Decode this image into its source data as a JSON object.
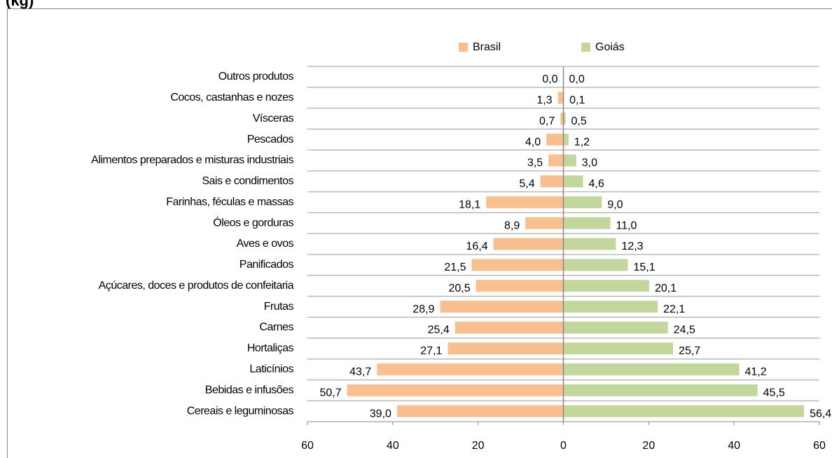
{
  "chart_data": {
    "type": "butterfly",
    "title": "(kg)",
    "categories": [
      "Outros produtos",
      "Cocos, castanhas e nozes",
      "Vísceras",
      "Pescados",
      "Alimentos preparados e misturas industriais",
      "Sais e condimentos",
      "Farinhas, féculas e massas",
      "Óleos e gorduras",
      "Aves e ovos",
      "Panificados",
      "Açúcares, doces e produtos de confeitaria",
      "Frutas",
      "Carnes",
      "Hortaliças",
      "Laticínios",
      "Bebidas e infusões",
      "Cereais e leguminosas"
    ],
    "series": [
      {
        "name": "Brasil",
        "color": "#f9bf8f",
        "side": "left",
        "values": [
          0.0,
          1.3,
          0.7,
          4.0,
          3.5,
          5.4,
          18.1,
          8.9,
          16.4,
          21.5,
          20.5,
          28.9,
          25.4,
          27.1,
          43.7,
          50.7,
          39.0
        ],
        "value_labels": [
          "0,0",
          "1,3",
          "0,7",
          "4,0",
          "3,5",
          "5,4",
          "18,1",
          "8,9",
          "16,4",
          "21,5",
          "20,5",
          "28,9",
          "25,4",
          "27,1",
          "43,7",
          "50,7",
          "39,0"
        ]
      },
      {
        "name": "Goiás",
        "color": "#c3d69b",
        "side": "right",
        "values": [
          0.0,
          0.1,
          0.5,
          1.2,
          3.0,
          4.6,
          9.0,
          11.0,
          12.3,
          15.1,
          20.1,
          22.1,
          24.5,
          25.7,
          41.2,
          45.5,
          56.4
        ],
        "value_labels": [
          "0,0",
          "0,1",
          "0,5",
          "1,2",
          "3,0",
          "4,6",
          "9,0",
          "11,0",
          "12,3",
          "15,1",
          "20,1",
          "22,1",
          "24,5",
          "25,7",
          "41,2",
          "45,5",
          "56,4"
        ]
      }
    ],
    "xlim": [
      -60,
      60
    ],
    "xticks": [
      {
        "value": -60,
        "label": "60"
      },
      {
        "value": -40,
        "label": "40"
      },
      {
        "value": -20,
        "label": "20"
      },
      0,
      20,
      40,
      60
    ],
    "legend": "top"
  }
}
